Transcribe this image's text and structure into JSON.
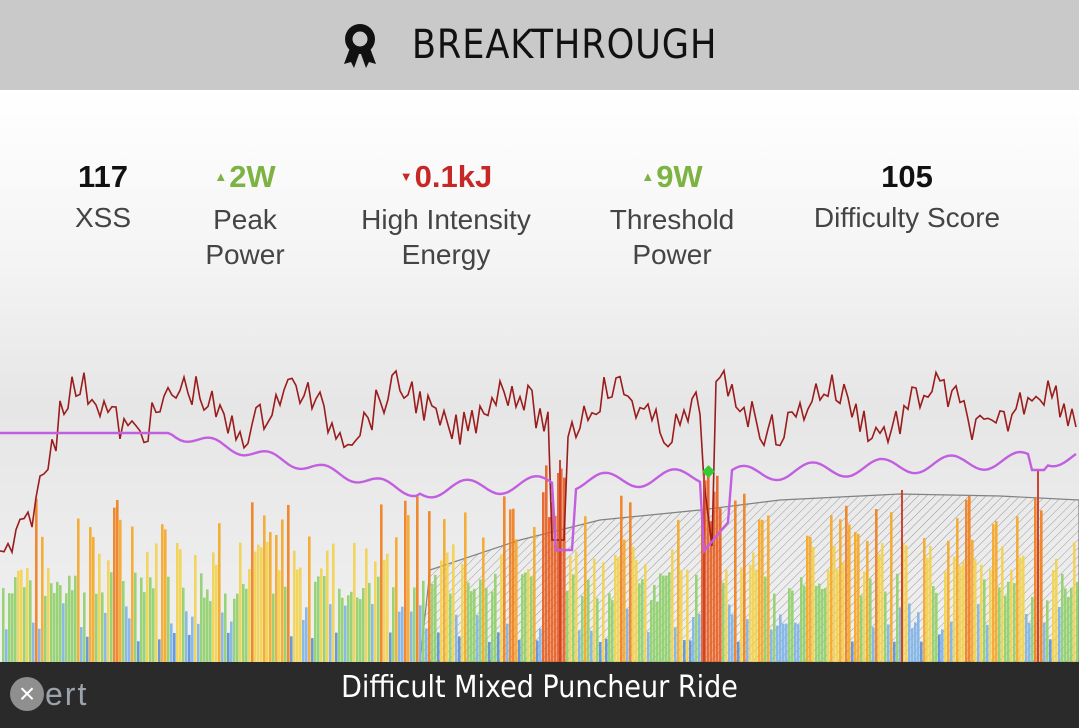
{
  "header": {
    "title": "BREAKTHROUGH",
    "icon": "award-ribbon-icon"
  },
  "stats": [
    {
      "value": "117",
      "label": "XSS",
      "trend": "none"
    },
    {
      "value": "2W",
      "label": "Peak\nPower",
      "trend": "up"
    },
    {
      "value": "0.1kJ",
      "label": "High Intensity\nEnergy",
      "trend": "down"
    },
    {
      "value": "9W",
      "label": "Threshold\nPower",
      "trend": "up"
    },
    {
      "value": "105",
      "label": "Difficulty Score",
      "trend": "none"
    }
  ],
  "footer": {
    "ride_name": "Difficult Mixed Puncheur Ride",
    "logo_x": "×",
    "logo_rest": "ert"
  },
  "colors": {
    "header_bg": "#c9c9c9",
    "footer_bg": "#2a2a2a",
    "up": "#7cb342",
    "down": "#c62828",
    "mpa_line": "#c25fe0",
    "power_line": "#9b1c1c",
    "breakthrough_marker": "#33cc33"
  }
}
